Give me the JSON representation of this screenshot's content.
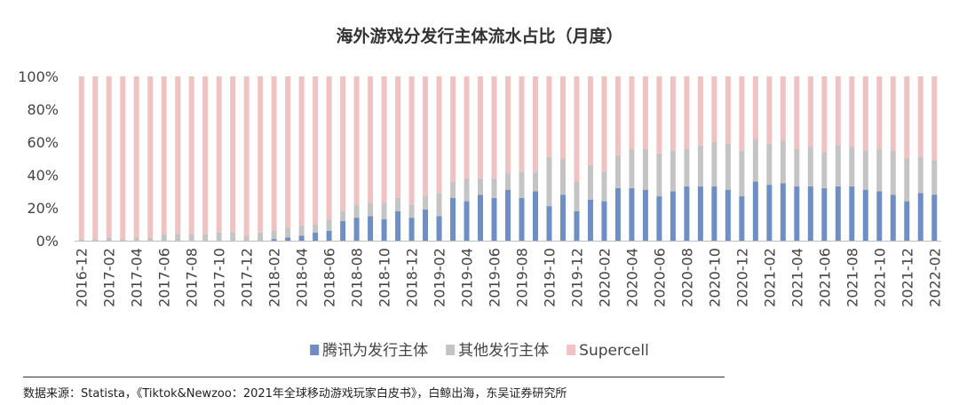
{
  "colors": {
    "tencent": "#6f8fc4",
    "other": "#c4c4c4",
    "supercell": "#f0c2c2"
  },
  "source_text": "数据来源：Statista，《Tiktok&Newzoo：2021年全球移动游戏玩家白皮书》，白鲸出海，东吴证券研究所",
  "chart_data": {
    "type": "bar",
    "stacked": true,
    "title": "海外游戏分发行主体流水占比（月度）",
    "xlabel": "",
    "ylabel": "",
    "ylim": [
      0,
      100
    ],
    "yticks": [
      "0%",
      "20%",
      "40%",
      "60%",
      "80%",
      "100%"
    ],
    "grid": false,
    "legend_position": "bottom",
    "categories": [
      "2016-12",
      "2017-01",
      "2017-02",
      "2017-03",
      "2017-04",
      "2017-05",
      "2017-06",
      "2017-07",
      "2017-08",
      "2017-09",
      "2017-10",
      "2017-11",
      "2017-12",
      "2018-01",
      "2018-02",
      "2018-03",
      "2018-04",
      "2018-05",
      "2018-06",
      "2018-07",
      "2018-08",
      "2018-09",
      "2018-10",
      "2018-11",
      "2018-12",
      "2019-01",
      "2019-02",
      "2019-03",
      "2019-04",
      "2019-05",
      "2019-06",
      "2019-07",
      "2019-08",
      "2019-09",
      "2019-10",
      "2019-11",
      "2019-12",
      "2020-01",
      "2020-02",
      "2020-03",
      "2020-04",
      "2020-05",
      "2020-06",
      "2020-07",
      "2020-08",
      "2020-09",
      "2020-10",
      "2020-11",
      "2020-12",
      "2021-01",
      "2021-02",
      "2021-03",
      "2021-04",
      "2021-05",
      "2021-06",
      "2021-07",
      "2021-08",
      "2021-09",
      "2021-10",
      "2021-11",
      "2021-12",
      "2022-01",
      "2022-02"
    ],
    "xtick_labels": [
      "2016-12",
      "2017-02",
      "2017-04",
      "2017-06",
      "2017-08",
      "2017-10",
      "2017-12",
      "2018-02",
      "2018-04",
      "2018-06",
      "2018-08",
      "2018-10",
      "2018-12",
      "2019-02",
      "2019-04",
      "2019-06",
      "2019-08",
      "2019-10",
      "2019-12",
      "2020-02",
      "2020-04",
      "2020-06",
      "2020-08",
      "2020-10",
      "2020-12",
      "2021-02",
      "2021-04",
      "2021-06",
      "2021-08",
      "2021-10",
      "2021-12",
      "2022-02"
    ],
    "series": [
      {
        "name": "腾讯为发行主体",
        "values": [
          0,
          0,
          0,
          0,
          0,
          0,
          0,
          0,
          0,
          0,
          0,
          0,
          0,
          0,
          1,
          2,
          3,
          5,
          6,
          12,
          14,
          15,
          13,
          18,
          14,
          19,
          15,
          26,
          24,
          28,
          26,
          31,
          26,
          30,
          21,
          28,
          18,
          25,
          24,
          32,
          32,
          31,
          27,
          30,
          33,
          33,
          33,
          31,
          27,
          36,
          34,
          35,
          33,
          33,
          32,
          33,
          33,
          31,
          30,
          28,
          24,
          29,
          28
        ]
      },
      {
        "name": "其他发行主体",
        "values": [
          1,
          1,
          2,
          1,
          2,
          2,
          4,
          4,
          4,
          4,
          5,
          5,
          3,
          5,
          5,
          6,
          6,
          5,
          7,
          6,
          8,
          8,
          10,
          8,
          8,
          8,
          14,
          10,
          14,
          10,
          12,
          10,
          16,
          12,
          30,
          22,
          18,
          21,
          18,
          20,
          24,
          25,
          26,
          25,
          23,
          25,
          27,
          28,
          28,
          26,
          25,
          26,
          23,
          24,
          22,
          25,
          24,
          24,
          26,
          27,
          26,
          22,
          21
        ]
      },
      {
        "name": "Supercell",
        "values": [
          99,
          99,
          98,
          99,
          98,
          98,
          96,
          96,
          96,
          96,
          95,
          95,
          97,
          95,
          94,
          92,
          91,
          90,
          87,
          82,
          78,
          77,
          77,
          74,
          78,
          73,
          71,
          64,
          62,
          62,
          62,
          59,
          58,
          58,
          49,
          50,
          64,
          54,
          58,
          48,
          44,
          44,
          47,
          45,
          44,
          42,
          40,
          41,
          45,
          38,
          41,
          39,
          44,
          43,
          46,
          42,
          43,
          45,
          44,
          45,
          50,
          49,
          51
        ]
      }
    ]
  }
}
